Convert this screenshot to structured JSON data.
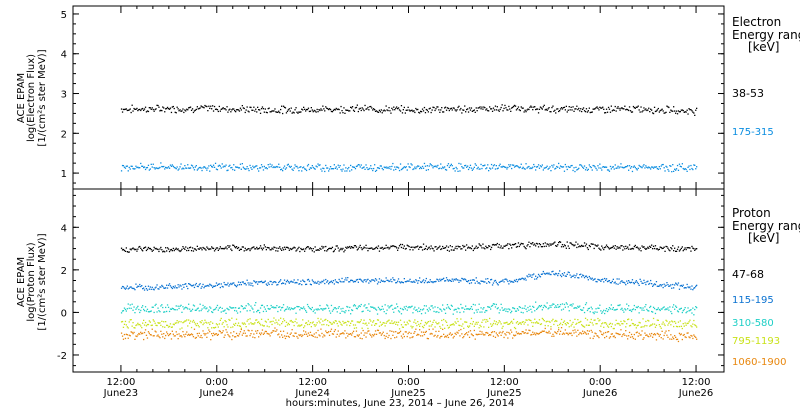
{
  "chart_data": [
    {
      "type": "scatter",
      "panel": "electron",
      "ylabel": [
        "ACE EPAM",
        "log(Electron Flux)",
        "[1/(cm²s ster MeV)]"
      ],
      "ylim": [
        0.6,
        5.2
      ],
      "yticks": [
        1,
        2,
        3,
        4,
        5
      ],
      "grid": false,
      "legend_title": [
        "Electron",
        "Energy range",
        "[keV]"
      ],
      "legend_placement": "right",
      "x_range_hours": [
        -6,
        75.5
      ],
      "series": [
        {
          "name": "38-53",
          "color": "#000000",
          "x": [
            0,
            6,
            12,
            18,
            24,
            30,
            36,
            42,
            48,
            54,
            60,
            66,
            72
          ],
          "y": [
            2.62,
            2.63,
            2.64,
            2.6,
            2.61,
            2.63,
            2.6,
            2.62,
            2.64,
            2.62,
            2.62,
            2.62,
            2.57
          ]
        },
        {
          "name": "175-315",
          "color": "#0a8de0",
          "x": [
            0,
            6,
            12,
            18,
            24,
            30,
            36,
            42,
            48,
            54,
            60,
            66,
            72
          ],
          "y": [
            1.17,
            1.17,
            1.16,
            1.16,
            1.15,
            1.16,
            1.17,
            1.16,
            1.17,
            1.16,
            1.15,
            1.16,
            1.15
          ]
        }
      ]
    },
    {
      "type": "scatter",
      "panel": "proton",
      "ylabel": [
        "ACE EPAM",
        "log(Proton Flux)",
        "[1/(cm²s ster MeV)]"
      ],
      "ylim": [
        -2.8,
        5.8
      ],
      "yticks": [
        -2,
        0,
        2,
        4
      ],
      "grid": false,
      "legend_title": [
        "Proton",
        "Energy range",
        "[keV]"
      ],
      "legend_placement": "right",
      "x_range_hours": [
        -6,
        75.5
      ],
      "series": [
        {
          "name": "47-68",
          "color": "#000000",
          "x": [
            0,
            6,
            12,
            18,
            24,
            30,
            36,
            42,
            48,
            54,
            60,
            66,
            72
          ],
          "y": [
            3.0,
            3.0,
            3.02,
            3.05,
            3.02,
            3.05,
            3.1,
            3.05,
            3.15,
            3.25,
            3.1,
            3.05,
            3.0
          ]
        },
        {
          "name": "115-195",
          "color": "#0a72d1",
          "x": [
            0,
            6,
            12,
            18,
            24,
            30,
            36,
            42,
            48,
            54,
            60,
            66,
            72
          ],
          "y": [
            1.2,
            1.25,
            1.3,
            1.45,
            1.45,
            1.55,
            1.5,
            1.55,
            1.45,
            1.9,
            1.55,
            1.4,
            1.2
          ]
        },
        {
          "name": "310-580",
          "color": "#1ecfc6",
          "x": [
            0,
            6,
            12,
            18,
            24,
            30,
            36,
            42,
            48,
            54,
            60,
            66,
            72
          ],
          "y": [
            0.2,
            0.2,
            0.22,
            0.25,
            0.2,
            0.2,
            0.2,
            0.2,
            0.2,
            0.3,
            0.2,
            0.2,
            0.15
          ]
        },
        {
          "name": "795-1193",
          "color": "#c9e21a",
          "x": [
            0,
            6,
            12,
            18,
            24,
            30,
            36,
            42,
            48,
            54,
            60,
            66,
            72
          ],
          "y": [
            -0.5,
            -0.5,
            -0.5,
            -0.45,
            -0.5,
            -0.5,
            -0.5,
            -0.5,
            -0.5,
            -0.45,
            -0.5,
            -0.5,
            -0.55
          ]
        },
        {
          "name": "1060-1900",
          "color": "#e8870e",
          "x": [
            0,
            6,
            12,
            18,
            24,
            30,
            36,
            42,
            48,
            54,
            60,
            66,
            72
          ],
          "y": [
            -1.0,
            -1.0,
            -1.0,
            -0.95,
            -1.0,
            -1.0,
            -1.0,
            -1.0,
            -1.0,
            -0.9,
            -1.0,
            -1.05,
            -1.1
          ]
        }
      ]
    }
  ],
  "x_axis": {
    "tick_labels": [
      {
        "time": "12:00",
        "date": "June23"
      },
      {
        "time": "0:00",
        "date": "June24"
      },
      {
        "time": "12:00",
        "date": "June24"
      },
      {
        "time": "0:00",
        "date": "June25"
      },
      {
        "time": "12:00",
        "date": "June25"
      },
      {
        "time": "0:00",
        "date": "June26"
      },
      {
        "time": "12:00",
        "date": "June26"
      }
    ],
    "xlabel": "hours:minutes, June 23, 2014 – June 26, 2014"
  },
  "colors": {
    "axis": "#000000",
    "background": "#ffffff"
  }
}
